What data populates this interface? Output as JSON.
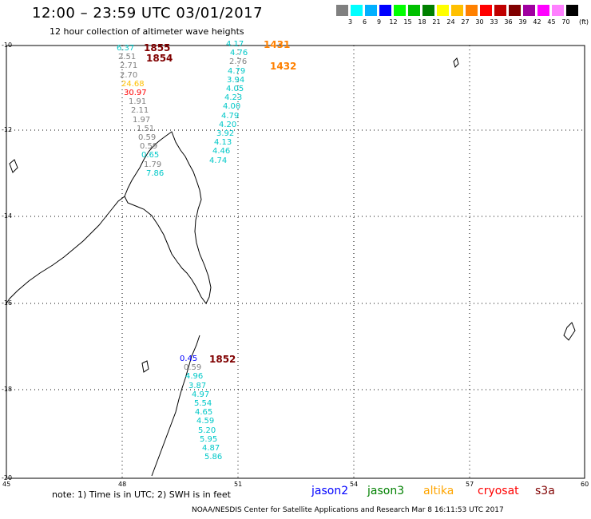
{
  "header": {
    "title": "12:00 – 23:59 UTC 03/01/2017",
    "subtitle": "12 hour collection of altimeter wave heights"
  },
  "legend": {
    "labels": [
      "3",
      "6",
      "9",
      "12",
      "15",
      "18",
      "21",
      "24",
      "27",
      "30",
      "33",
      "36",
      "39",
      "42",
      "45",
      "70"
    ],
    "unit": "(ft)",
    "colors": [
      "#808080",
      "#00ffff",
      "#00b0ff",
      "#0000ff",
      "#00ff00",
      "#00c000",
      "#008000",
      "#ffff00",
      "#ffc000",
      "#ff8000",
      "#ff0000",
      "#c00000",
      "#800000",
      "#a000a0",
      "#ff00ff",
      "#ff80ff",
      "#000000"
    ]
  },
  "map": {
    "lat_ticks": [
      "-10",
      "-12",
      "-14",
      "-16",
      "-18",
      "-20"
    ],
    "lon_ticks": [
      "45",
      "48",
      "51",
      "54",
      "57",
      "60"
    ]
  },
  "tracks": [
    {
      "time": "1855",
      "color": "#800000",
      "values": [
        "6.37",
        "2.51",
        "2.71",
        "2.70",
        "24.68",
        "30.97",
        "1.91",
        "2.11",
        "1.97",
        "1.51",
        "0.59",
        "0.59",
        "0.65",
        "1.79",
        "7.86"
      ],
      "value_colors": [
        "#00c8c8",
        "#808080",
        "#808080",
        "#808080",
        "#ffc000",
        "#ff0000",
        "#808080",
        "#808080",
        "#808080",
        "#808080",
        "#808080",
        "#808080",
        "#00c8c8",
        "#808080",
        "#00c8c8"
      ]
    },
    {
      "time": "1854",
      "color": "#800000"
    },
    {
      "time": "1431",
      "color": "#ff8000",
      "values": [
        "4.17",
        "4.76",
        "2.76",
        "4.79",
        "3.94",
        "4.05",
        "4.23",
        "4.00",
        "4.79",
        "4.20",
        "3.92",
        "4.13",
        "4.46",
        "4.74"
      ],
      "value_colors": [
        "#00c8c8",
        "#00c8c8",
        "#808080",
        "#00c8c8",
        "#00c8c8",
        "#00c8c8",
        "#00c8c8",
        "#00c8c8",
        "#00c8c8",
        "#00c8c8",
        "#00c8c8",
        "#00c8c8",
        "#00c8c8",
        "#00c8c8"
      ]
    },
    {
      "time": "1432",
      "color": "#ff8000"
    },
    {
      "time": "1852",
      "color": "#800000",
      "values": [
        "0.45",
        "0.59",
        "4.96",
        "3.87",
        "4.97",
        "5.54",
        "4.65",
        "4.59",
        "5.20",
        "5.95",
        "4.87",
        "5.86"
      ],
      "value_colors": [
        "#0000ff",
        "#808080",
        "#00c8c8",
        "#00c8c8",
        "#00c8c8",
        "#00c8c8",
        "#00c8c8",
        "#00c8c8",
        "#00c8c8",
        "#00c8c8",
        "#00c8c8",
        "#00c8c8"
      ]
    }
  ],
  "footer": {
    "note": "note:  1) Time is in UTC;  2) SWH is in feet",
    "satellites": [
      {
        "name": "jason2",
        "color": "#0000ff"
      },
      {
        "name": "jason3",
        "color": "#008000"
      },
      {
        "name": "altika",
        "color": "#ffa500"
      },
      {
        "name": "cryosat",
        "color": "#ff0000"
      },
      {
        "name": "s3a",
        "color": "#800000"
      }
    ],
    "credit": "NOAA/NESDIS Center for Satellite Applications and Research    Mar  8 16:11:53 UTC 2017"
  }
}
